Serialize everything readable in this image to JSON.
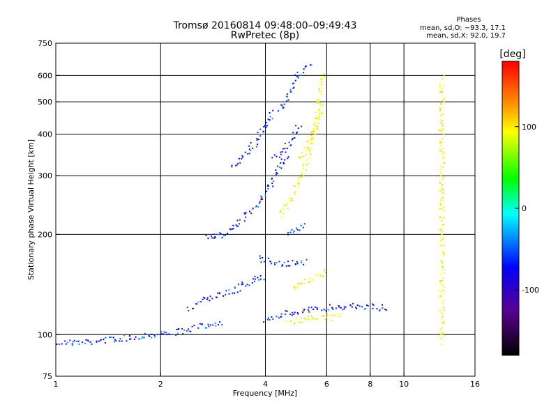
{
  "chart_data": {
    "type": "scatter",
    "title": "Tromsø 20160814 09:48:00–09:49:43",
    "subtitle": "RwPretec (8p)",
    "xlabel": "Frequency [MHz]",
    "ylabel": "Stationary phase Virtual Height [km]",
    "x_scale": "log",
    "y_scale": "log",
    "xlim": [
      1,
      16
    ],
    "ylim": [
      75,
      750
    ],
    "x_ticks": [
      1,
      2,
      4,
      6,
      8,
      10,
      16
    ],
    "y_ticks": [
      75,
      100,
      200,
      300,
      400,
      500,
      600,
      750
    ],
    "grid": true,
    "phases": {
      "title": "Phases",
      "line_o": "mean, sd,O: −93.3, 17.1",
      "line_x": "mean, sd,X:  92.0, 19.7"
    },
    "colorbar": {
      "label": "[deg]",
      "range": [
        -180,
        180
      ],
      "ticks": [
        100,
        0,
        -100
      ],
      "colors": [
        "#ff0000",
        "#ff8c00",
        "#ffff00",
        "#00ff00",
        "#00ffff",
        "#0000ff",
        "#5a0090",
        "#000000"
      ]
    },
    "series": [
      {
        "name": "O",
        "mean_phase": -93.3,
        "traces": [
          {
            "x": [
              1.0,
              1.2,
              1.4,
              1.6,
              1.8,
              2.0,
              2.2,
              2.4,
              2.6,
              2.8,
              3.0
            ],
            "y": [
              95,
              95,
              97,
              98,
              100,
              101,
              102,
              104,
              106,
              108,
              110
            ]
          },
          {
            "x": [
              2.4,
              2.6,
              2.8,
              3.0,
              3.2,
              3.4,
              3.6,
              3.8,
              4.0
            ],
            "y": [
              120,
              126,
              130,
              133,
              136,
              140,
              145,
              148,
              150
            ]
          },
          {
            "x": [
              4.0,
              4.4,
              4.8,
              5.2,
              5.6,
              6.0,
              6.6,
              7.2,
              8.0,
              8.6,
              9.0
            ],
            "y": [
              112,
              115,
              117,
              118,
              120,
              121,
              122,
              122,
              122,
              121,
              120
            ]
          },
          {
            "x": [
              3.0,
              3.2,
              3.4,
              3.6,
              3.8,
              4.0,
              4.2,
              4.4,
              4.6
            ],
            "y": [
              200,
              210,
              220,
              235,
              250,
              270,
              290,
              320,
              350
            ]
          },
          {
            "x": [
              3.2,
              3.4,
              3.6,
              3.8,
              4.0,
              4.2
            ],
            "y": [
              320,
              340,
              360,
              390,
              430,
              470
            ]
          },
          {
            "x": [
              4.2,
              4.4,
              4.6,
              4.8,
              5.0
            ],
            "y": [
              340,
              350,
              370,
              400,
              430
            ]
          },
          {
            "x": [
              4.4,
              4.6,
              4.8,
              5.0,
              5.2,
              5.4
            ],
            "y": [
              470,
              520,
              570,
              610,
              640,
              650
            ]
          },
          {
            "x": [
              4.6,
              4.8,
              5.0,
              5.2
            ],
            "y": [
              200,
              205,
              210,
              212
            ]
          },
          {
            "x": [
              3.8,
              4.0,
              4.2,
              4.4,
              4.6,
              4.8,
              5.0,
              5.2
            ],
            "y": [
              170,
              168,
              166,
              165,
              164,
              164,
              165,
              166
            ]
          },
          {
            "x": [
              2.7,
              2.8,
              2.9,
              3.0
            ],
            "y": [
              197,
              198,
              199,
              200
            ]
          }
        ]
      },
      {
        "name": "X",
        "mean_phase": 92.0,
        "traces": [
          {
            "x": [
              4.4,
              4.6,
              4.8,
              5.0,
              5.2,
              5.4,
              5.6,
              5.8
            ],
            "y": [
              230,
              245,
              265,
              290,
              330,
              380,
              450,
              620
            ]
          },
          {
            "x": [
              5.0,
              5.2,
              5.4,
              5.6,
              5.8
            ],
            "y": [
              340,
              360,
              390,
              430,
              500
            ]
          },
          {
            "x": [
              4.6,
              5.0,
              5.4,
              5.8,
              6.2,
              6.6
            ],
            "y": [
              110,
              111,
              112,
              113,
              113,
              114
            ]
          },
          {
            "x": [
              4.8,
              5.2,
              5.6,
              6.0
            ],
            "y": [
              140,
              145,
              150,
              155
            ]
          },
          {
            "x": [
              12.8,
              12.8,
              12.8,
              12.8,
              12.8,
              12.8,
              12.8,
              12.8
            ],
            "y": [
              95,
              110,
              140,
              180,
              230,
              330,
              450,
              600
            ]
          }
        ]
      }
    ]
  }
}
